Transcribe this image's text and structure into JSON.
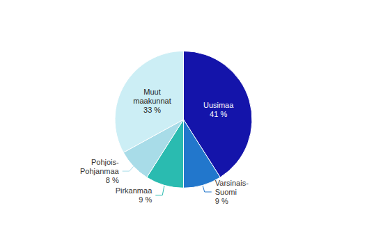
{
  "chart_data": {
    "type": "pie",
    "categories": [
      "Uusimaa",
      "Varsinais-\nSuomi",
      "Pirkanmaa",
      "Pohjois-\nPohjanmaa",
      "Muut\nmaakunnat"
    ],
    "values": [
      41,
      9,
      9,
      8,
      33
    ],
    "value_labels": [
      "41 %",
      "9 %",
      "9 %",
      "8 %",
      "33 %"
    ],
    "colors": [
      "#1414aa",
      "#2277cc",
      "#2abbb0",
      "#a8dce8",
      "#cceef5"
    ],
    "data_labels": true
  }
}
